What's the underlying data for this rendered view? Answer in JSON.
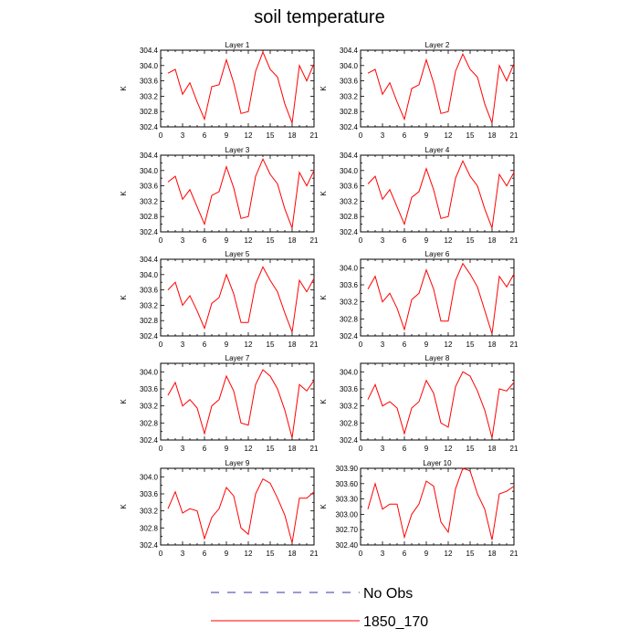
{
  "title": "soil temperature",
  "legend": [
    {
      "label": "No Obs",
      "color": "#3333aa",
      "dash": true
    },
    {
      "label": "1850_170",
      "color": "#ff0000",
      "dash": false
    }
  ],
  "chart_data": [
    {
      "type": "line",
      "title": "Layer 1",
      "ylabel": "K",
      "xlim": [
        0,
        21
      ],
      "ylim": [
        302.4,
        304.4
      ],
      "xticks": [
        0,
        3,
        6,
        9,
        12,
        15,
        18,
        21
      ],
      "yticks": [
        "302.4",
        "302.8",
        "303.2",
        "303.6",
        "304.0",
        "304.4"
      ],
      "series": [
        {
          "color": "#ff0000",
          "x": [
            1,
            2,
            3,
            4,
            5,
            6,
            7,
            8,
            9,
            10,
            11,
            12,
            13,
            14,
            15,
            16,
            17,
            18,
            19,
            20,
            21
          ],
          "values": [
            303.8,
            303.9,
            303.25,
            303.55,
            303.05,
            302.6,
            303.45,
            303.5,
            304.15,
            303.55,
            302.75,
            302.8,
            303.85,
            304.35,
            303.9,
            303.7,
            303.0,
            302.5,
            304.0,
            303.6,
            304.05
          ]
        }
      ]
    },
    {
      "type": "line",
      "title": "Layer 2",
      "ylabel": "K",
      "xlim": [
        0,
        21
      ],
      "ylim": [
        302.4,
        304.4
      ],
      "xticks": [
        0,
        3,
        6,
        9,
        12,
        15,
        18,
        21
      ],
      "yticks": [
        "302.4",
        "302.8",
        "303.2",
        "303.6",
        "304.0",
        "304.4"
      ],
      "series": [
        {
          "color": "#ff0000",
          "x": [
            1,
            2,
            3,
            4,
            5,
            6,
            7,
            8,
            9,
            10,
            11,
            12,
            13,
            14,
            15,
            16,
            17,
            18,
            19,
            20,
            21
          ],
          "values": [
            303.8,
            303.9,
            303.25,
            303.55,
            303.05,
            302.6,
            303.4,
            303.5,
            304.15,
            303.55,
            302.75,
            302.8,
            303.85,
            304.3,
            303.9,
            303.7,
            303.0,
            302.5,
            304.0,
            303.6,
            304.05
          ]
        }
      ]
    },
    {
      "type": "line",
      "title": "Layer 3",
      "ylabel": "K",
      "xlim": [
        0,
        21
      ],
      "ylim": [
        302.4,
        304.4
      ],
      "xticks": [
        0,
        3,
        6,
        9,
        12,
        15,
        18,
        21
      ],
      "yticks": [
        "302.4",
        "302.8",
        "303.2",
        "303.6",
        "304.0",
        "304.4"
      ],
      "series": [
        {
          "color": "#ff0000",
          "x": [
            1,
            2,
            3,
            4,
            5,
            6,
            7,
            8,
            9,
            10,
            11,
            12,
            13,
            14,
            15,
            16,
            17,
            18,
            19,
            20,
            21
          ],
          "values": [
            303.7,
            303.85,
            303.25,
            303.5,
            303.05,
            302.6,
            303.35,
            303.45,
            304.1,
            303.55,
            302.75,
            302.8,
            303.85,
            304.3,
            303.9,
            303.65,
            303.0,
            302.5,
            303.95,
            303.6,
            304.0
          ]
        }
      ]
    },
    {
      "type": "line",
      "title": "Layer 4",
      "ylabel": "K",
      "xlim": [
        0,
        21
      ],
      "ylim": [
        302.4,
        304.4
      ],
      "xticks": [
        0,
        3,
        6,
        9,
        12,
        15,
        18,
        21
      ],
      "yticks": [
        "302.4",
        "302.8",
        "303.2",
        "303.6",
        "304.0",
        "304.4"
      ],
      "series": [
        {
          "color": "#ff0000",
          "x": [
            1,
            2,
            3,
            4,
            5,
            6,
            7,
            8,
            9,
            10,
            11,
            12,
            13,
            14,
            15,
            16,
            17,
            18,
            19,
            20,
            21
          ],
          "values": [
            303.65,
            303.85,
            303.25,
            303.5,
            303.05,
            302.6,
            303.3,
            303.45,
            304.05,
            303.5,
            302.75,
            302.8,
            303.8,
            304.25,
            303.85,
            303.6,
            303.0,
            302.5,
            303.9,
            303.6,
            303.95
          ]
        }
      ]
    },
    {
      "type": "line",
      "title": "Layer 5",
      "ylabel": "K",
      "xlim": [
        0,
        21
      ],
      "ylim": [
        302.4,
        304.4
      ],
      "xticks": [
        0,
        3,
        6,
        9,
        12,
        15,
        18,
        21
      ],
      "yticks": [
        "302.4",
        "302.8",
        "303.2",
        "303.6",
        "304.0",
        "304.4"
      ],
      "series": [
        {
          "color": "#ff0000",
          "x": [
            1,
            2,
            3,
            4,
            5,
            6,
            7,
            8,
            9,
            10,
            11,
            12,
            13,
            14,
            15,
            16,
            17,
            18,
            19,
            20,
            21
          ],
          "values": [
            303.6,
            303.8,
            303.2,
            303.45,
            303.05,
            302.6,
            303.25,
            303.4,
            304.0,
            303.5,
            302.75,
            302.75,
            303.75,
            304.2,
            303.85,
            303.55,
            303.0,
            302.5,
            303.85,
            303.55,
            303.9
          ]
        }
      ]
    },
    {
      "type": "line",
      "title": "Layer 6",
      "ylabel": "K",
      "xlim": [
        0,
        21
      ],
      "ylim": [
        302.4,
        304.2
      ],
      "xticks": [
        0,
        3,
        6,
        9,
        12,
        15,
        18,
        21
      ],
      "yticks": [
        "302.4",
        "302.8",
        "303.2",
        "303.6",
        "304.0"
      ],
      "series": [
        {
          "color": "#ff0000",
          "x": [
            1,
            2,
            3,
            4,
            5,
            6,
            7,
            8,
            9,
            10,
            11,
            12,
            13,
            14,
            15,
            16,
            17,
            18,
            19,
            20,
            21
          ],
          "values": [
            303.5,
            303.8,
            303.2,
            303.4,
            303.05,
            302.55,
            303.25,
            303.4,
            303.95,
            303.5,
            302.75,
            302.75,
            303.7,
            304.1,
            303.85,
            303.55,
            303.0,
            302.45,
            303.8,
            303.55,
            303.85
          ]
        }
      ]
    },
    {
      "type": "line",
      "title": "Layer 7",
      "ylabel": "K",
      "xlim": [
        0,
        21
      ],
      "ylim": [
        302.4,
        304.2
      ],
      "xticks": [
        0,
        3,
        6,
        9,
        12,
        15,
        18,
        21
      ],
      "yticks": [
        "302.4",
        "302.8",
        "303.2",
        "303.6",
        "304.0"
      ],
      "series": [
        {
          "color": "#ff0000",
          "x": [
            1,
            2,
            3,
            4,
            5,
            6,
            7,
            8,
            9,
            10,
            11,
            12,
            13,
            14,
            15,
            16,
            17,
            18,
            19,
            20,
            21
          ],
          "values": [
            303.45,
            303.75,
            303.2,
            303.35,
            303.15,
            302.55,
            303.2,
            303.35,
            303.9,
            303.55,
            302.8,
            302.75,
            303.7,
            304.05,
            303.9,
            303.6,
            303.1,
            302.45,
            303.7,
            303.55,
            303.8
          ]
        }
      ]
    },
    {
      "type": "line",
      "title": "Layer 8",
      "ylabel": "K",
      "xlim": [
        0,
        21
      ],
      "ylim": [
        302.4,
        304.2
      ],
      "xticks": [
        0,
        3,
        6,
        9,
        12,
        15,
        18,
        21
      ],
      "yticks": [
        "302.4",
        "302.8",
        "303.2",
        "303.6",
        "304.0"
      ],
      "series": [
        {
          "color": "#ff0000",
          "x": [
            1,
            2,
            3,
            4,
            5,
            6,
            7,
            8,
            9,
            10,
            11,
            12,
            13,
            14,
            15,
            16,
            17,
            18,
            19,
            20,
            21
          ],
          "values": [
            303.35,
            303.7,
            303.2,
            303.3,
            303.15,
            302.55,
            303.15,
            303.3,
            303.8,
            303.5,
            302.8,
            302.7,
            303.65,
            304.0,
            303.9,
            303.55,
            303.1,
            302.45,
            303.6,
            303.55,
            303.75
          ]
        }
      ]
    },
    {
      "type": "line",
      "title": "Layer 9",
      "ylabel": "K",
      "xlim": [
        0,
        21
      ],
      "ylim": [
        302.4,
        304.2
      ],
      "xticks": [
        0,
        3,
        6,
        9,
        12,
        15,
        18,
        21
      ],
      "yticks": [
        "302.4",
        "302.8",
        "303.2",
        "303.6",
        "304.0"
      ],
      "series": [
        {
          "color": "#ff0000",
          "x": [
            1,
            2,
            3,
            4,
            5,
            6,
            7,
            8,
            9,
            10,
            11,
            12,
            13,
            14,
            15,
            16,
            17,
            18,
            19,
            20,
            21
          ],
          "values": [
            303.25,
            303.65,
            303.15,
            303.25,
            303.2,
            302.55,
            303.05,
            303.25,
            303.75,
            303.55,
            302.8,
            302.65,
            303.6,
            303.95,
            303.85,
            303.5,
            303.1,
            302.45,
            303.5,
            303.5,
            303.65
          ]
        }
      ]
    },
    {
      "type": "line",
      "title": "Layer 10",
      "ylabel": "K",
      "xlim": [
        0,
        21
      ],
      "ylim": [
        302.4,
        303.9
      ],
      "xticks": [
        0,
        3,
        6,
        9,
        12,
        15,
        18,
        21
      ],
      "yticks": [
        "302.40",
        "302.70",
        "303.00",
        "303.30",
        "303.60",
        "303.90"
      ],
      "series": [
        {
          "color": "#ff0000",
          "x": [
            1,
            2,
            3,
            4,
            5,
            6,
            7,
            8,
            9,
            10,
            11,
            12,
            13,
            14,
            15,
            16,
            17,
            18,
            19,
            20,
            21
          ],
          "values": [
            303.1,
            303.6,
            303.1,
            303.2,
            303.2,
            302.55,
            303.0,
            303.2,
            303.65,
            303.55,
            302.85,
            302.65,
            303.5,
            303.9,
            303.85,
            303.4,
            303.1,
            302.5,
            303.4,
            303.45,
            303.55
          ]
        }
      ]
    }
  ]
}
